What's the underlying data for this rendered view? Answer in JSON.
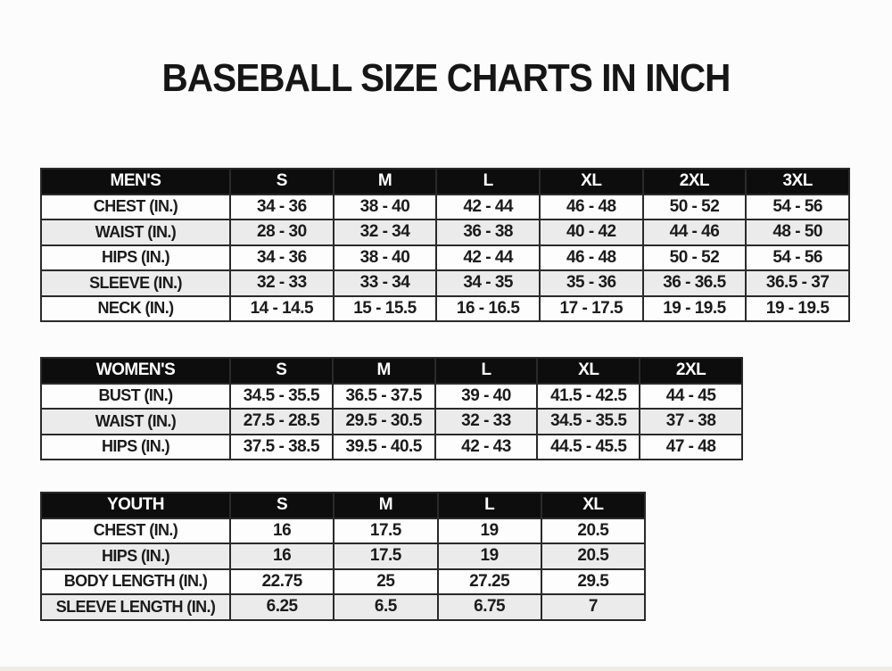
{
  "page": {
    "title": "BASEBALL SIZE CHARTS IN INCH"
  },
  "colors": {
    "header_bg": "#0d0d0d",
    "header_text": "#ffffff",
    "row_alt_bg": "#ebebeb",
    "border": "#2a2a2a",
    "text": "#1b1b1b"
  },
  "tables": [
    {
      "name": "mens",
      "header": [
        "MEN'S",
        "S",
        "M",
        "L",
        "XL",
        "2XL",
        "3XL"
      ],
      "rows": [
        {
          "label": "CHEST (IN.)",
          "values": [
            "34 - 36",
            "38 - 40",
            "42 - 44",
            "46 - 48",
            "50 - 52",
            "54 - 56"
          ]
        },
        {
          "label": "WAIST (IN.)",
          "values": [
            "28 - 30",
            "32 - 34",
            "36 - 38",
            "40 - 42",
            "44 - 46",
            "48 - 50"
          ]
        },
        {
          "label": "HIPS (IN.)",
          "values": [
            "34 - 36",
            "38 - 40",
            "42 - 44",
            "46 - 48",
            "50 - 52",
            "54 - 56"
          ]
        },
        {
          "label": "SLEEVE (IN.)",
          "values": [
            "32 - 33",
            "33 - 34",
            "34 - 35",
            "35 - 36",
            "36 - 36.5",
            "36.5 - 37"
          ]
        },
        {
          "label": "NECK (IN.)",
          "values": [
            "14 - 14.5",
            "15 - 15.5",
            "16 - 16.5",
            "17 - 17.5",
            "19 - 19.5",
            "19 - 19.5"
          ]
        }
      ]
    },
    {
      "name": "womens",
      "header": [
        "WOMEN'S",
        "S",
        "M",
        "L",
        "XL",
        "2XL"
      ],
      "rows": [
        {
          "label": "BUST (IN.)",
          "values": [
            "34.5 - 35.5",
            "36.5 - 37.5",
            "39 - 40",
            "41.5 - 42.5",
            "44 - 45"
          ]
        },
        {
          "label": "WAIST (IN.)",
          "values": [
            "27.5 - 28.5",
            "29.5 - 30.5",
            "32 - 33",
            "34.5 - 35.5",
            "37 - 38"
          ]
        },
        {
          "label": "HIPS (IN.)",
          "values": [
            "37.5 - 38.5",
            "39.5 - 40.5",
            "42 - 43",
            "44.5 - 45.5",
            "47 - 48"
          ]
        }
      ]
    },
    {
      "name": "youth",
      "header": [
        "YOUTH",
        "S",
        "M",
        "L",
        "XL"
      ],
      "rows": [
        {
          "label": "CHEST (IN.)",
          "values": [
            "16",
            "17.5",
            "19",
            "20.5"
          ]
        },
        {
          "label": "HIPS (IN.)",
          "values": [
            "16",
            "17.5",
            "19",
            "20.5"
          ]
        },
        {
          "label": "BODY LENGTH (IN.)",
          "values": [
            "22.75",
            "25",
            "27.25",
            "29.5"
          ]
        },
        {
          "label": "SLEEVE LENGTH (IN.)",
          "values": [
            "6.25",
            "6.5",
            "6.75",
            "7"
          ]
        }
      ]
    }
  ]
}
